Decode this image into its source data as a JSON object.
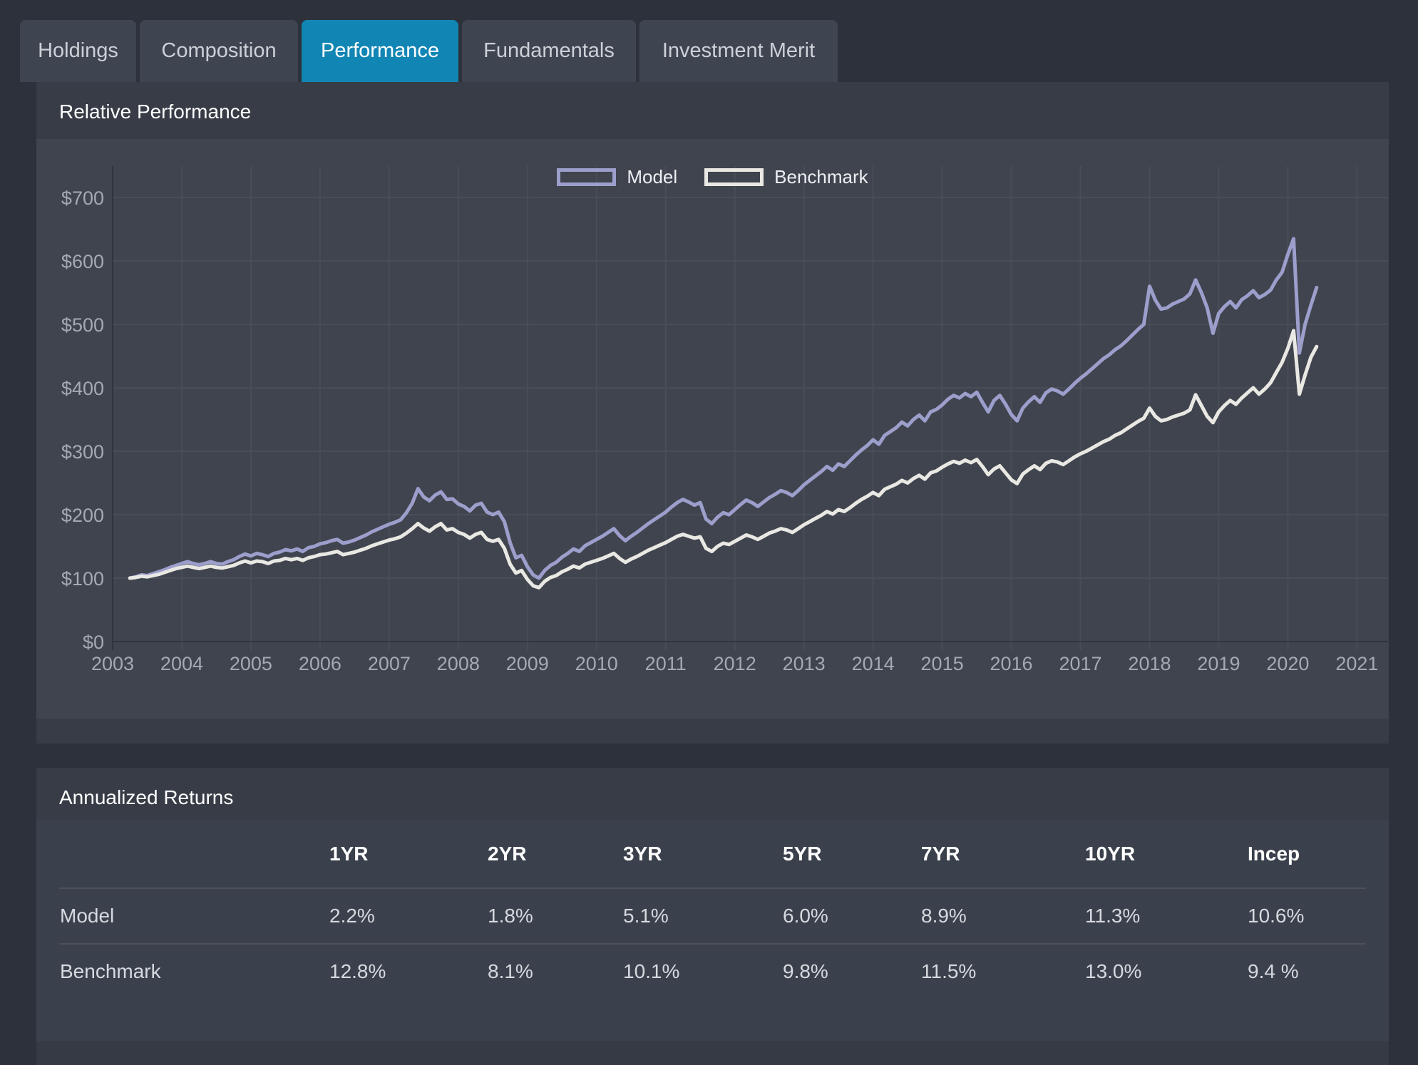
{
  "tabs": {
    "items": [
      {
        "label": "Holdings",
        "active": false
      },
      {
        "label": "Composition",
        "active": false
      },
      {
        "label": "Performance",
        "active": true
      },
      {
        "label": "Fundamentals",
        "active": false
      },
      {
        "label": "Investment Merit",
        "active": false
      }
    ],
    "active_color": "#1186b4"
  },
  "chart_panel": {
    "title": "Relative Performance"
  },
  "chart_data": {
    "type": "line",
    "title": "Relative Performance",
    "legend_position": "top-center",
    "grid": true,
    "x_axis": {
      "min": 2003,
      "max": 2021.45,
      "ticks": [
        2003,
        2004,
        2005,
        2006,
        2007,
        2008,
        2009,
        2010,
        2011,
        2012,
        2013,
        2014,
        2015,
        2016,
        2017,
        2018,
        2019,
        2020,
        2021
      ]
    },
    "y_axis": {
      "min": 0,
      "max": 700,
      "tick_step": 100,
      "prefix": "$",
      "tick_labels": [
        "$0",
        "$100",
        "$200",
        "$300",
        "$400",
        "$500",
        "$600",
        "$700"
      ]
    },
    "x_start": {
      "year": 2003,
      "month": 4,
      "frequency": "monthly"
    },
    "series": [
      {
        "name": "Model",
        "color": "#9c9ecb",
        "monthly_values": [
          100,
          102,
          105,
          104,
          107,
          110,
          113,
          117,
          120,
          123,
          126,
          123,
          121,
          123,
          126,
          123,
          122,
          126,
          129,
          134,
          138,
          135,
          139,
          137,
          134,
          139,
          141,
          145,
          143,
          146,
          142,
          148,
          150,
          154,
          156,
          159,
          161,
          155,
          157,
          160,
          164,
          168,
          173,
          177,
          181,
          185,
          188,
          192,
          203,
          218,
          241,
          228,
          222,
          231,
          236,
          224,
          225,
          217,
          213,
          206,
          215,
          218,
          204,
          200,
          204,
          189,
          156,
          132,
          136,
          118,
          105,
          100,
          112,
          120,
          125,
          133,
          139,
          146,
          142,
          151,
          156,
          161,
          166,
          172,
          178,
          167,
          159,
          166,
          172,
          179,
          186,
          192,
          198,
          204,
          212,
          219,
          224,
          220,
          215,
          219,
          193,
          186,
          196,
          203,
          200,
          208,
          216,
          223,
          219,
          213,
          220,
          227,
          232,
          238,
          235,
          230,
          238,
          247,
          254,
          261,
          268,
          276,
          270,
          280,
          276,
          285,
          294,
          302,
          309,
          318,
          311,
          325,
          331,
          337,
          346,
          340,
          350,
          357,
          348,
          362,
          366,
          373,
          382,
          388,
          384,
          391,
          386,
          393,
          377,
          362,
          380,
          388,
          374,
          358,
          348,
          368,
          378,
          386,
          377,
          392,
          398,
          395,
          390,
          398,
          407,
          415,
          422,
          430,
          438,
          446,
          452,
          460,
          466,
          474,
          483,
          492,
          500,
          560,
          538,
          524,
          526,
          532,
          536,
          540,
          548,
          570,
          550,
          526,
          486,
          517,
          528,
          536,
          526,
          539,
          545,
          553,
          542,
          547,
          554,
          570,
          582,
          610,
          635,
          455,
          500,
          530,
          558
        ]
      },
      {
        "name": "Benchmark",
        "color": "#e9e8e3",
        "monthly_values": [
          100,
          101,
          103,
          102,
          104,
          106,
          109,
          112,
          115,
          117,
          119,
          117,
          115,
          117,
          119,
          117,
          116,
          118,
          120,
          124,
          127,
          124,
          127,
          126,
          123,
          127,
          128,
          131,
          129,
          131,
          128,
          132,
          134,
          137,
          138,
          140,
          142,
          137,
          139,
          141,
          144,
          147,
          151,
          154,
          157,
          160,
          162,
          165,
          171,
          178,
          186,
          179,
          174,
          181,
          186,
          176,
          178,
          172,
          169,
          163,
          169,
          172,
          161,
          158,
          161,
          147,
          122,
          108,
          112,
          98,
          88,
          85,
          95,
          101,
          104,
          110,
          114,
          119,
          116,
          122,
          125,
          128,
          131,
          135,
          139,
          131,
          125,
          130,
          134,
          139,
          144,
          148,
          152,
          156,
          161,
          166,
          169,
          166,
          163,
          165,
          147,
          142,
          150,
          155,
          153,
          158,
          163,
          168,
          165,
          161,
          166,
          171,
          174,
          178,
          176,
          172,
          178,
          184,
          189,
          194,
          199,
          205,
          201,
          208,
          205,
          211,
          218,
          224,
          229,
          235,
          230,
          240,
          244,
          248,
          254,
          250,
          257,
          262,
          256,
          266,
          269,
          275,
          280,
          284,
          281,
          286,
          282,
          287,
          276,
          263,
          272,
          277,
          266,
          255,
          249,
          264,
          271,
          277,
          271,
          281,
          285,
          283,
          279,
          285,
          291,
          296,
          300,
          305,
          310,
          315,
          319,
          325,
          329,
          335,
          341,
          347,
          352,
          368,
          355,
          348,
          350,
          354,
          357,
          360,
          365,
          389,
          372,
          355,
          345,
          362,
          372,
          380,
          374,
          384,
          392,
          400,
          390,
          398,
          408,
          424,
          440,
          462,
          490,
          390,
          420,
          448,
          465
        ]
      }
    ]
  },
  "returns_panel": {
    "title": "Annualized Returns",
    "table": {
      "columns": [
        "",
        "1YR",
        "2YR",
        "3YR",
        "5YR",
        "7YR",
        "10YR",
        "Incep"
      ],
      "rows": [
        {
          "label": "Model",
          "values": [
            "2.2%",
            "1.8%",
            "5.1%",
            "6.0%",
            "8.9%",
            "11.3%",
            "10.6%"
          ]
        },
        {
          "label": "Benchmark",
          "values": [
            "12.8%",
            "8.1%",
            "10.1%",
            "9.8%",
            "11.5%",
            "13.0%",
            "9.4 %"
          ]
        }
      ]
    }
  },
  "colors": {
    "page_bg": "#2d313b",
    "panel_bg": "#373c46",
    "plot_bg": "#3f444e",
    "table_bg": "#3b414c",
    "gridline": "#484d57",
    "axis_line": "#2f343d",
    "tick_text": "#a5a9b2",
    "active_tab": "#1186b4",
    "model_line": "#9c9ecb",
    "benchmark_line": "#e9e8e3"
  }
}
